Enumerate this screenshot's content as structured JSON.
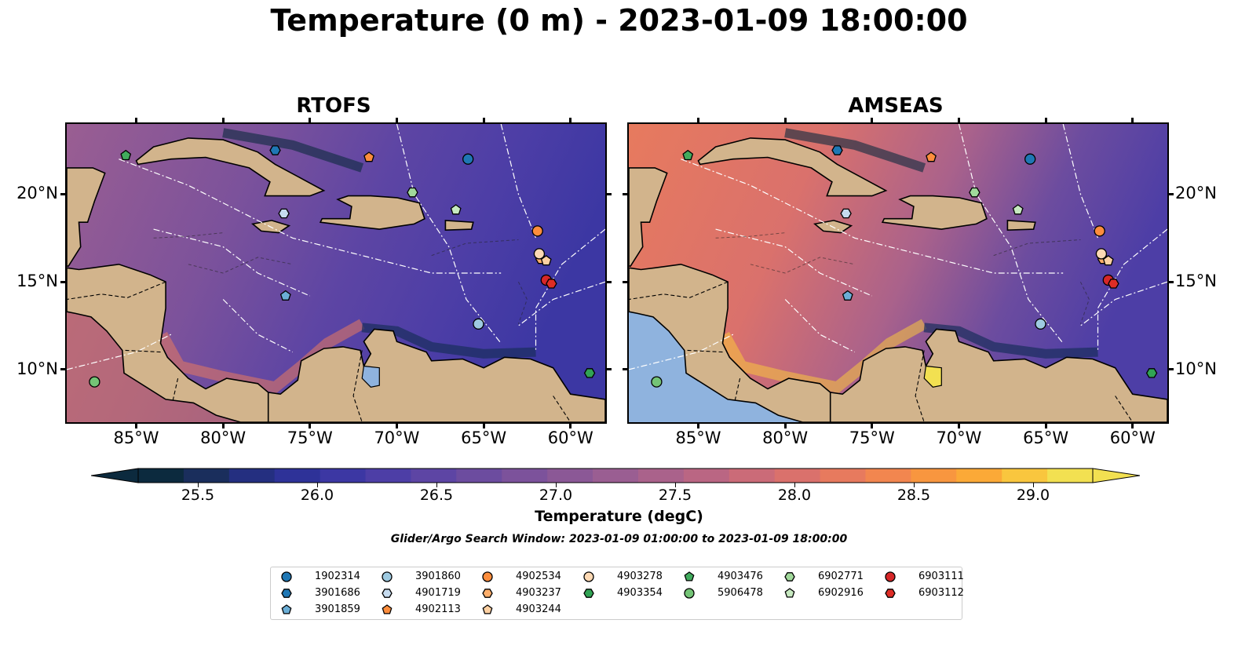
{
  "title": "Temperature (0 m) - 2023-01-09 18:00:00",
  "panels": [
    {
      "title": "RTOFS",
      "model": "rtofs"
    },
    {
      "title": "AMSEAS",
      "model": "amseas"
    }
  ],
  "lon_ticks": [
    "85°W",
    "80°W",
    "75°W",
    "70°W",
    "65°W",
    "60°W"
  ],
  "lat_ticks": [
    "20°N",
    "15°N",
    "10°N"
  ],
  "colorbar": {
    "label": "Temperature (degC)",
    "min": 25.25,
    "max": 29.25,
    "ticks": [
      "25.5",
      "26.0",
      "26.5",
      "27.0",
      "27.5",
      "28.0",
      "28.5",
      "29.0"
    ],
    "colors": [
      "#0c2a3e",
      "#1a2e5c",
      "#242f80",
      "#2e3298",
      "#3c37a3",
      "#4d3ea6",
      "#5d45a4",
      "#6c4c9f",
      "#7c529b",
      "#8b5896",
      "#9a5e92",
      "#aa628b",
      "#ba6683",
      "#cb6b78",
      "#da716c",
      "#e77a5e",
      "#f2864f",
      "#f8963f",
      "#fba937",
      "#f9c63e",
      "#f2e051"
    ],
    "extend": "both"
  },
  "search_window": "Glider/Argo Search Window: 2023-01-09 01:00:00 to 2023-01-09 18:00:00",
  "map_extent": {
    "lon": [
      -89,
      -58
    ],
    "lat": [
      7,
      24
    ]
  },
  "platforms": [
    {
      "id": "1902314",
      "marker": "circle",
      "color": "#1f77b4",
      "lon": -65.9,
      "lat": 22.0
    },
    {
      "id": "3901686",
      "marker": "hexagon",
      "color": "#1f77b4",
      "lon": -77.0,
      "lat": 22.5
    },
    {
      "id": "3901859",
      "marker": "pentagon",
      "color": "#6baed6",
      "lon": -76.4,
      "lat": 14.2
    },
    {
      "id": "3901860",
      "marker": "circle",
      "color": "#9ecae1",
      "lon": -65.3,
      "lat": 12.6
    },
    {
      "id": "4901719",
      "marker": "hexagon",
      "color": "#c6dbef",
      "lon": -76.5,
      "lat": 18.9
    },
    {
      "id": "4902113",
      "marker": "pentagon",
      "color": "#fd8d3c",
      "lon": -71.6,
      "lat": 22.1
    },
    {
      "id": "4902534",
      "marker": "circle",
      "color": "#fd8d3c",
      "lon": -61.9,
      "lat": 17.9
    },
    {
      "id": "4903237",
      "marker": "hexagon",
      "color": "#fdae6b",
      "lon": -61.7,
      "lat": 16.3
    },
    {
      "id": "4903244",
      "marker": "pentagon",
      "color": "#fdd0a2",
      "lon": -61.4,
      "lat": 16.2
    },
    {
      "id": "4903278",
      "marker": "circle",
      "color": "#fdd9b4",
      "lon": -61.8,
      "lat": 16.6
    },
    {
      "id": "4903354",
      "marker": "hexagon",
      "color": "#31a354",
      "lon": -58.9,
      "lat": 9.8
    },
    {
      "id": "4903476",
      "marker": "pentagon",
      "color": "#41ab5d",
      "lon": -85.6,
      "lat": 22.2
    },
    {
      "id": "5906478",
      "marker": "circle",
      "color": "#74c476",
      "lon": -87.4,
      "lat": 9.3
    },
    {
      "id": "6902771",
      "marker": "hexagon",
      "color": "#a1d99b",
      "lon": -69.1,
      "lat": 20.1
    },
    {
      "id": "6902916",
      "marker": "pentagon",
      "color": "#c7e9c0",
      "lon": -66.6,
      "lat": 19.1
    },
    {
      "id": "6903111",
      "marker": "circle",
      "color": "#d62728",
      "lon": -61.4,
      "lat": 15.1
    },
    {
      "id": "6903112",
      "marker": "hexagon",
      "color": "#de2d26",
      "lon": -61.1,
      "lat": 14.9
    }
  ],
  "legend_order": [
    "1902314",
    "3901686",
    "3901859",
    "3901860",
    "4901719",
    "4902113",
    "4902534",
    "4903237",
    "4903244",
    "4903278",
    "4903354",
    "4903476",
    "5906478",
    "6902771",
    "6902916",
    "6903111",
    "6903112"
  ]
}
